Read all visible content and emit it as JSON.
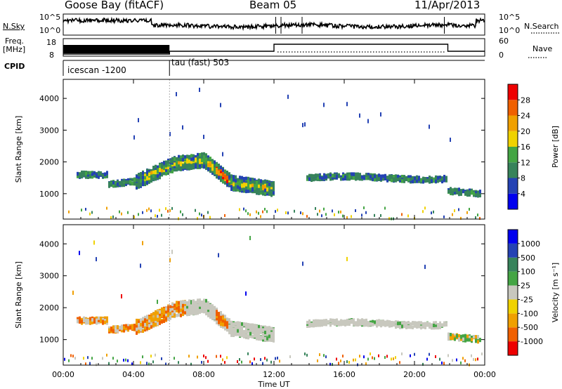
{
  "header": {
    "station": "Goose Bay (fitACF)",
    "beam": "Beam 05",
    "date": "11/Apr/2013"
  },
  "panels": {
    "nsky_label": "N.Sky",
    "nsky_ticks": [
      "10^5",
      "10^0"
    ],
    "nsearch_label": "N.Search",
    "nsearch_ticks": [
      "10^5",
      "10^0"
    ],
    "freq_label_line1": "Freq.",
    "freq_label_line2": "[MHz]",
    "freq_ticks": [
      "18",
      "8"
    ],
    "nave_label": "Nave",
    "nave_ticks": [
      "60",
      "0"
    ],
    "cpid_label": "CPID",
    "cpid_segments": [
      "icescan -1200",
      "tau (fast) 503"
    ]
  },
  "colors": {
    "power": [
      "#0000ee",
      "#2442b4",
      "#37835b",
      "#44a544",
      "#f0d200",
      "#f0a000",
      "#f06000",
      "#ee0000"
    ],
    "velocity": [
      "#ee0000",
      "#f06000",
      "#f0a000",
      "#f0d200",
      "#c8c8be",
      "#44a544",
      "#37835b",
      "#2442b4",
      "#0000ee"
    ]
  },
  "chart_data": [
    {
      "type": "heatmap",
      "quantity": "Power",
      "ylabel": "Slant Range [km]",
      "xlabel": "",
      "x_ticks": [
        "00:00",
        "04:00",
        "08:00",
        "12:00",
        "16:00",
        "20:00",
        "00:00"
      ],
      "y_ticks": [
        1000,
        2000,
        3000,
        4000
      ],
      "ylim": [
        200,
        4600
      ],
      "xlim_hours": [
        0,
        24
      ],
      "colorbar_label": "Power [dB]",
      "colorbar_ticks": [
        4,
        8,
        12,
        16,
        20,
        24,
        28
      ],
      "colorbar_range": [
        0,
        30
      ]
    },
    {
      "type": "heatmap",
      "quantity": "Velocity",
      "ylabel": "Slant Range [km]",
      "xlabel": "Time UT",
      "x_ticks": [
        "00:00",
        "04:00",
        "08:00",
        "12:00",
        "16:00",
        "20:00",
        "00:00"
      ],
      "y_ticks": [
        1000,
        2000,
        3000,
        4000
      ],
      "ylim": [
        200,
        4600
      ],
      "xlim_hours": [
        0,
        24
      ],
      "colorbar_label": "Velocity [m s⁻¹]",
      "colorbar_ticks": [
        -1000,
        -500,
        -100,
        -25,
        25,
        100,
        500,
        1000
      ]
    }
  ]
}
